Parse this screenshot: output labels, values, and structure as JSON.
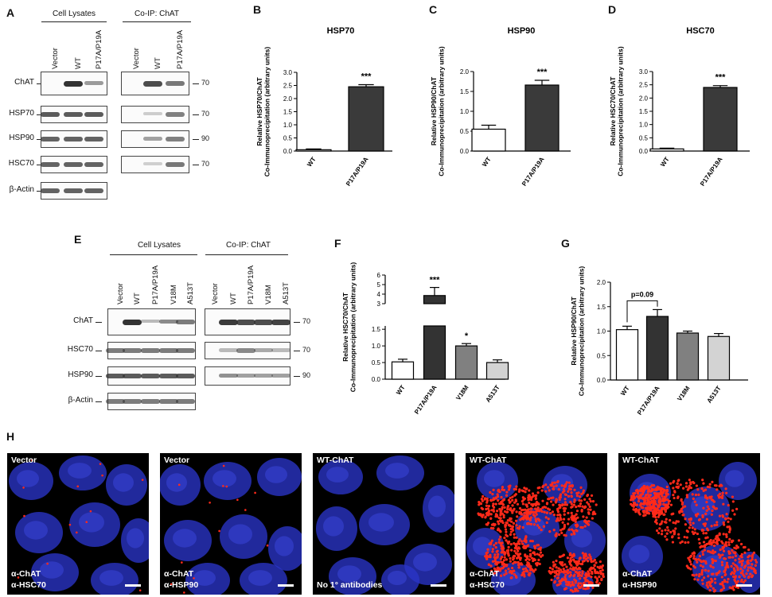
{
  "panel_letters": {
    "a": "A",
    "b": "B",
    "c": "C",
    "d": "D",
    "e": "E",
    "f": "F",
    "g": "G",
    "h": "H"
  },
  "blot_a": {
    "groups": [
      "Cell Lysates",
      "Co-IP: ChAT"
    ],
    "lanes_lysate": [
      "Vector",
      "WT",
      "P17A/P19A"
    ],
    "lanes_coip": [
      "Vector",
      "WT",
      "P17A/P19A"
    ],
    "rows": [
      "ChAT",
      "HSP70",
      "HSP90",
      "HSC70",
      "β-Actin"
    ],
    "mw": [
      "70",
      "70",
      "90",
      "70"
    ]
  },
  "blot_e": {
    "groups": [
      "Cell Lysates",
      "Co-IP: ChAT"
    ],
    "lanes_lysate": [
      "Vector",
      "WT",
      "P17A/P19A",
      "V18M",
      "A513T"
    ],
    "lanes_coip": [
      "Vector",
      "WT",
      "P17A/P19A",
      "V18M",
      "A513T"
    ],
    "rows": [
      "ChAT",
      "HSC70",
      "HSP90",
      "β-Actin"
    ],
    "mw": [
      "70",
      "70",
      "90"
    ]
  },
  "chart_data": [
    {
      "id": "B",
      "type": "bar",
      "title": "HSP70",
      "categories": [
        "WT",
        "P17A/P19A"
      ],
      "values": [
        0.05,
        2.45
      ],
      "errors": [
        0.03,
        0.08
      ],
      "ylabel": "Relative HSP70/ChAT Co-Immunoprecipitation (arbitrary units)",
      "ylim": [
        0,
        3.0
      ],
      "yticks": [
        "0.0",
        "0.5",
        "1.0",
        "1.5",
        "2.0",
        "2.5",
        "3.0"
      ],
      "sig": [
        "",
        "***"
      ],
      "colors": [
        "#ffffff",
        "#3a3a3a"
      ]
    },
    {
      "id": "C",
      "type": "bar",
      "title": "HSP90",
      "categories": [
        "WT",
        "P17A/P19A"
      ],
      "values": [
        0.55,
        1.66
      ],
      "errors": [
        0.1,
        0.12
      ],
      "ylabel": "Relative HSP90/ChAT Co-Immunoprecipitation (arbitrary units)",
      "ylim": [
        0,
        2.0
      ],
      "yticks": [
        "0.0",
        "0.5",
        "1.0",
        "1.5",
        "2.0"
      ],
      "sig": [
        "",
        "***"
      ],
      "colors": [
        "#ffffff",
        "#3a3a3a"
      ]
    },
    {
      "id": "D",
      "type": "bar",
      "title": "HSC70",
      "categories": [
        "WT",
        "P17A/P19A"
      ],
      "values": [
        0.08,
        2.4
      ],
      "errors": [
        0.03,
        0.07
      ],
      "ylabel": "Relative HSC70/ChAT Co-Immunoprecipitation (arbitrary units)",
      "ylim": [
        0,
        3.0
      ],
      "yticks": [
        "0.0",
        "0.5",
        "1.0",
        "1.5",
        "2.0",
        "2.5",
        "3.0"
      ],
      "sig": [
        "",
        "***"
      ],
      "colors": [
        "#ffffff",
        "#3a3a3a"
      ]
    },
    {
      "id": "F",
      "type": "bar",
      "title": "",
      "categories": [
        "WT",
        "P17A/P19A",
        "V18M",
        "A513T"
      ],
      "values": [
        0.52,
        3.85,
        1.0,
        0.5
      ],
      "errors": [
        0.08,
        0.85,
        0.07,
        0.08
      ],
      "ylabel": "Relative HSC70/ChAT Co-Immunoprecipitation (arbitrary units)",
      "ylim": [
        0,
        6
      ],
      "yticks_lower": [
        "0.0",
        "0.5",
        "1.0",
        "1.5"
      ],
      "yticks_upper": [
        "3",
        "4",
        "5",
        "6"
      ],
      "axis_break": [
        1.6,
        3.0
      ],
      "sig": [
        "",
        "***",
        "*",
        ""
      ],
      "colors": [
        "#ffffff",
        "#333333",
        "#808080",
        "#d3d3d3"
      ]
    },
    {
      "id": "G",
      "type": "bar",
      "title": "",
      "categories": [
        "WT",
        "P17A/P19A",
        "V18M",
        "A513T"
      ],
      "values": [
        1.03,
        1.3,
        0.96,
        0.89
      ],
      "errors": [
        0.07,
        0.14,
        0.04,
        0.06
      ],
      "ylabel": "Relative HSP90/ChAT Co-Immunoprecipitation (arbitrary units)",
      "ylim": [
        0,
        2.0
      ],
      "yticks": [
        "0.0",
        "0.5",
        "1.0",
        "1.5",
        "2.0"
      ],
      "annotation": "p=0.09",
      "colors": [
        "#ffffff",
        "#333333",
        "#808080",
        "#d3d3d3"
      ]
    }
  ],
  "micrographs": [
    {
      "label": "Vector",
      "ab1": "α-ChAT",
      "ab2": "α-HSC70",
      "signal": "low"
    },
    {
      "label": "Vector",
      "ab1": "α-ChAT",
      "ab2": "α-HSP90",
      "signal": "low"
    },
    {
      "label": "WT-ChAT",
      "ab1": "No 1° antibodies",
      "ab2": "",
      "signal": "none"
    },
    {
      "label": "WT-ChAT",
      "ab1": "α-ChAT",
      "ab2": "α-HSC70",
      "signal": "high"
    },
    {
      "label": "WT-ChAT",
      "ab1": "α-ChAT",
      "ab2": "α-HSP90",
      "signal": "high"
    }
  ],
  "colors": {
    "nucleus": "#2a34c8",
    "pla_signal": "#ff2a1a",
    "dark_bar": "#3a3a3a",
    "mid_bar": "#808080",
    "light_bar": "#d3d3d3"
  }
}
